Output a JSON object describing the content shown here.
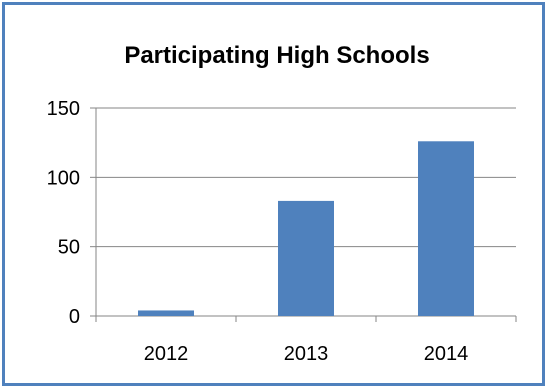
{
  "chart_data": {
    "type": "bar",
    "title": "Participating High Schools",
    "categories": [
      "2012",
      "2013",
      "2014"
    ],
    "values": [
      4,
      83,
      126
    ],
    "ylim": [
      0,
      150
    ],
    "yticks": [
      0,
      50,
      100,
      150
    ],
    "grid": true,
    "bar_color": "#4f81bd",
    "border_color": "#4f81bd",
    "xlabel": "",
    "ylabel": ""
  }
}
